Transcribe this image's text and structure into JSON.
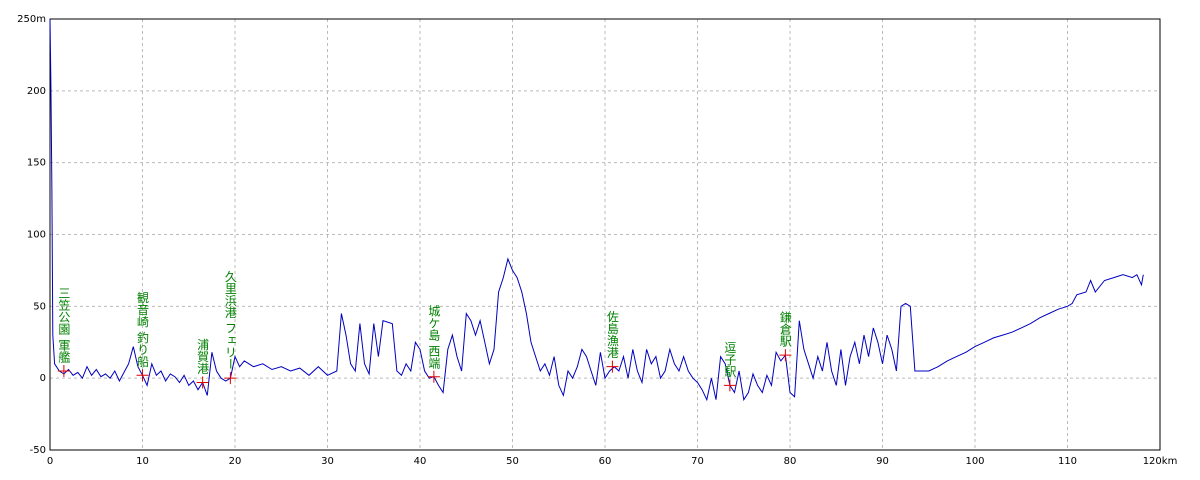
{
  "chart_data": {
    "type": "line",
    "x": [
      0,
      0.1,
      0.2,
      0.3,
      0.5,
      1,
      1.5,
      2,
      2.5,
      3,
      3.5,
      4,
      4.5,
      5,
      5.5,
      6,
      6.5,
      7,
      7.5,
      8,
      8.5,
      9,
      9.5,
      10,
      10.5,
      11,
      11.5,
      12,
      12.5,
      13,
      13.5,
      14,
      14.5,
      15,
      15.5,
      16,
      16.5,
      17,
      17.5,
      18,
      18.5,
      19,
      19.5,
      20,
      20.5,
      21,
      22,
      23,
      24,
      25,
      26,
      27,
      28,
      29,
      30,
      31,
      31.5,
      32,
      32.5,
      33,
      33.5,
      34,
      34.5,
      35,
      35.5,
      36,
      37,
      37.5,
      38,
      38.5,
      39,
      39.5,
      40,
      40.5,
      41,
      41.5,
      42,
      42.5,
      43,
      43.5,
      44,
      44.5,
      45,
      45.5,
      46,
      46.5,
      47,
      47.5,
      48,
      48.5,
      49,
      49.5,
      50,
      50.5,
      51,
      51.5,
      52,
      52.5,
      53,
      53.5,
      54,
      54.5,
      55,
      55.5,
      56,
      56.5,
      57,
      57.5,
      58,
      58.5,
      59,
      59.5,
      60,
      60.5,
      61,
      61.5,
      62,
      62.5,
      63,
      63.5,
      64,
      64.5,
      65,
      65.5,
      66,
      66.5,
      67,
      67.5,
      68,
      68.5,
      69,
      69.5,
      70,
      70.5,
      71,
      71.5,
      72,
      72.5,
      73,
      73.5,
      74,
      74.5,
      75,
      75.5,
      76,
      76.5,
      77,
      77.5,
      78,
      78.5,
      79,
      79.5,
      80,
      80.5,
      81,
      81.5,
      82,
      82.5,
      83,
      83.5,
      84,
      84.5,
      85,
      85.5,
      86,
      86.5,
      87,
      87.5,
      88,
      88.5,
      89,
      89.5,
      90,
      90.5,
      91,
      91.5,
      92,
      92.5,
      93,
      93.5,
      94,
      95,
      96,
      97,
      98,
      99,
      100,
      101,
      102,
      103,
      104,
      105,
      106,
      107,
      108,
      109,
      110,
      110.5,
      111,
      112,
      112.5,
      113,
      114,
      115,
      116,
      117,
      117.5,
      118,
      118.2
    ],
    "series": [
      {
        "color": "#0000c0",
        "values": [
          250,
          205,
          130,
          30,
          10,
          5,
          3,
          6,
          2,
          4,
          0,
          8,
          2,
          6,
          1,
          3,
          0,
          5,
          -2,
          4,
          10,
          22,
          8,
          2,
          -5,
          10,
          2,
          5,
          -2,
          3,
          1,
          -3,
          2,
          -5,
          -2,
          -8,
          -3,
          -12,
          18,
          5,
          0,
          -2,
          0,
          15,
          8,
          12,
          8,
          10,
          6,
          8,
          5,
          7,
          2,
          8,
          2,
          5,
          45,
          30,
          10,
          5,
          38,
          10,
          3,
          38,
          15,
          40,
          38,
          5,
          2,
          10,
          5,
          25,
          20,
          5,
          0,
          1,
          -5,
          -10,
          20,
          30,
          15,
          5,
          45,
          40,
          30,
          40,
          25,
          10,
          20,
          60,
          70,
          83,
          75,
          70,
          60,
          45,
          25,
          15,
          5,
          10,
          2,
          15,
          -5,
          -12,
          5,
          0,
          8,
          20,
          15,
          5,
          -5,
          18,
          0,
          5,
          8,
          5,
          15,
          0,
          20,
          5,
          -3,
          20,
          10,
          15,
          0,
          5,
          20,
          10,
          5,
          15,
          5,
          0,
          -3,
          -8,
          -15,
          0,
          -15,
          15,
          10,
          -5,
          -10,
          5,
          -15,
          -10,
          3,
          -5,
          -10,
          2,
          -5,
          18,
          12,
          16,
          -10,
          -13,
          40,
          20,
          10,
          0,
          15,
          5,
          25,
          5,
          -5,
          20,
          -5,
          15,
          25,
          10,
          30,
          15,
          35,
          25,
          10,
          30,
          20,
          5,
          50,
          52,
          50,
          5,
          5,
          5,
          8,
          12,
          15,
          18,
          22,
          25,
          28,
          30,
          32,
          35,
          38,
          42,
          45,
          48,
          50,
          52,
          58,
          60,
          68,
          60,
          68,
          70,
          72,
          70,
          72,
          65,
          72
        ]
      }
    ],
    "annotations": [
      {
        "text": "三笠公園 軍艦",
        "x": 1.5,
        "y": 5
      },
      {
        "text": "観音崎 釣り船",
        "x": 10,
        "y": 2
      },
      {
        "text": "浦賀港",
        "x": 16.5,
        "y": -3
      },
      {
        "text": "久里浜港 フェリー",
        "x": 19.5,
        "y": 0
      },
      {
        "text": "城ケ島 西端",
        "x": 41.5,
        "y": 1
      },
      {
        "text": "佐島漁港",
        "x": 60.8,
        "y": 8
      },
      {
        "text": "逗子駅",
        "x": 73.5,
        "y": -5
      },
      {
        "text": "鎌倉駅",
        "x": 79.5,
        "y": 16
      }
    ],
    "xlim": [
      0,
      120
    ],
    "ylim": [
      -50,
      250
    ],
    "xticks": [
      0,
      10,
      20,
      30,
      40,
      50,
      60,
      70,
      80,
      90,
      100,
      110,
      {
        "value": 120,
        "label": "120km"
      }
    ],
    "yticks": [
      -50,
      0,
      50,
      100,
      150,
      200,
      {
        "value": 250,
        "label": "250m"
      }
    ],
    "grid": true
  }
}
